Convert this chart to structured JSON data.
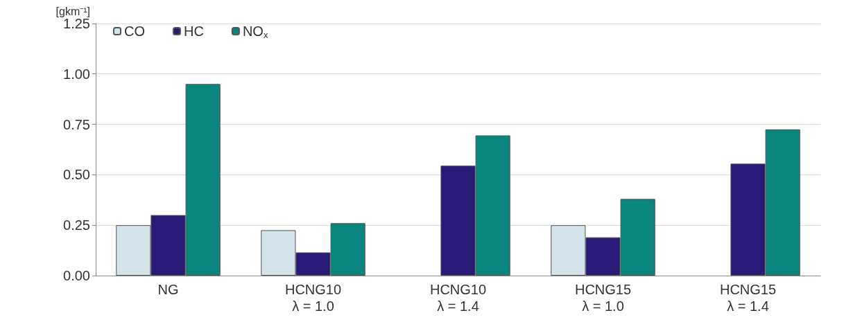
{
  "chart_data": {
    "type": "bar",
    "ylabel": "[gkm⁻¹]",
    "categories": [
      "NG",
      "HCNG10\nλ = 1.0",
      "HCNG10\nλ = 1.4",
      "HCNG15\nλ = 1.0",
      "HCNG15\nλ = 1.4"
    ],
    "series": [
      {
        "name": "CO",
        "color": "#d4e4ea",
        "values": [
          0.25,
          0.225,
          null,
          0.25,
          null
        ]
      },
      {
        "name": "HC",
        "color": "#2a1a78",
        "values": [
          0.3,
          0.115,
          0.545,
          0.19,
          0.555
        ]
      },
      {
        "name": "NO$_{x}$",
        "color": "#0a8580",
        "values": [
          0.95,
          0.26,
          0.695,
          0.38,
          0.725
        ]
      }
    ],
    "ylim": [
      0,
      1.25
    ],
    "yticks": [
      {
        "value": 0,
        "label": "0.00"
      },
      0.25,
      {
        "value": 0.5,
        "label": "0.50"
      },
      0.75,
      {
        "value": 1,
        "label": "1.00"
      },
      1.25
    ],
    "grid": "y",
    "legend": "top left"
  }
}
